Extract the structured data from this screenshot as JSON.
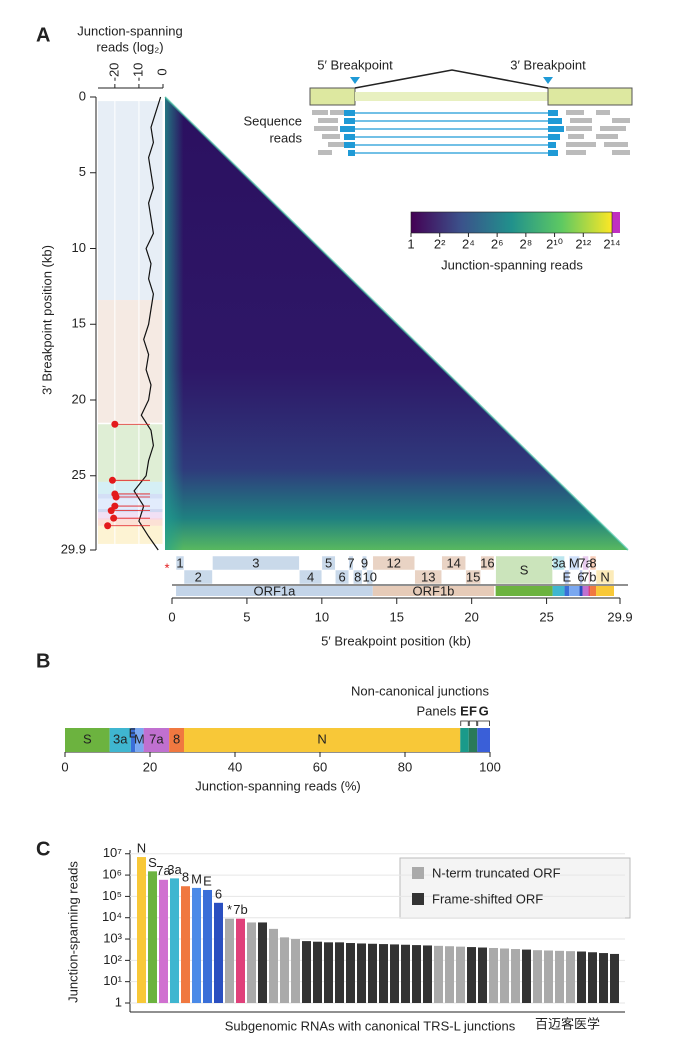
{
  "chart_data": [
    {
      "panel": "A",
      "type": "heatmap",
      "xlabel": "5′ Breakpoint position (kb)",
      "ylabel": "3′ Breakpoint position (kb)",
      "xlim": [
        0,
        29.9
      ],
      "ylim": [
        0,
        29.9
      ],
      "xticks": [
        0,
        5,
        10,
        15,
        20,
        25,
        29.9
      ],
      "yticks": [
        0,
        5,
        10,
        15,
        20,
        25,
        29.9
      ],
      "marker": "*",
      "colorbar": {
        "label": "Junction-spanning reads",
        "clim": [
          1,
          16384
        ],
        "log_base": 2,
        "ticks": [
          1,
          {
            "value": 4,
            "label": "2²"
          },
          {
            "value": 16,
            "label": "2⁴"
          },
          {
            "value": 64,
            "label": "2⁶"
          },
          {
            "value": 256,
            "label": "2⁸"
          },
          {
            "value": 1024,
            "label": "2¹⁰"
          },
          {
            "value": 4096,
            "label": "2¹²"
          },
          {
            "value": 16384,
            "label": "2¹⁴"
          }
        ]
      },
      "profile": {
        "title_lines": [
          "Junction-spanning",
          "reads (log₂)"
        ],
        "xlim": [
          -27,
          0
        ],
        "xticks": [
          -20,
          -10,
          0
        ],
        "color": "#111111",
        "positions": [
          0,
          1,
          2,
          3,
          4,
          5,
          6,
          7,
          8,
          9,
          10,
          11,
          12,
          13,
          14,
          15,
          16,
          17,
          18,
          19,
          20,
          21,
          22,
          23,
          24,
          25,
          26,
          27,
          28,
          29,
          29.9
        ],
        "values": [
          -1,
          -3,
          -5,
          -4,
          -6,
          -5,
          -4,
          -6,
          -5,
          -4,
          -7,
          -5,
          -6,
          -4,
          -5,
          -6,
          -8,
          -6,
          -7,
          -5,
          -6,
          -9,
          -5,
          -4,
          -6,
          -7,
          -12,
          -8,
          -10,
          -6,
          -2
        ],
        "canonical_color": "#e31a1c",
        "canonical_positions": [
          21.6,
          25.3,
          26.2,
          26.4,
          27.0,
          27.3,
          27.8,
          28.3
        ],
        "canonical_values": [
          -20,
          -21,
          -20,
          -19.5,
          -20,
          -21.5,
          -20.5,
          -23
        ]
      },
      "schematic": {
        "left": "5′ Breakpoint",
        "right": "3′ Breakpoint",
        "reads_lines": [
          "Sequence",
          "reads"
        ]
      },
      "genome": {
        "orfs": [
          {
            "label": "ORF1a",
            "start": 0.27,
            "end": 13.4,
            "color": "#c3d4e8"
          },
          {
            "label": "ORF1b",
            "start": 13.4,
            "end": 21.5,
            "color": "#e6cbb8"
          }
        ],
        "features": [
          {
            "label": "1",
            "start": 0.27,
            "end": 0.8,
            "color": "#c9d9ea"
          },
          {
            "label": "2",
            "start": 0.8,
            "end": 2.7,
            "color": "#c9d9ea"
          },
          {
            "label": "3",
            "start": 2.7,
            "end": 8.5,
            "color": "#c9d9ea"
          },
          {
            "label": "4",
            "start": 8.5,
            "end": 10.0,
            "color": "#c9d9ea"
          },
          {
            "label": "5",
            "start": 10.0,
            "end": 10.9,
            "color": "#c9d9ea"
          },
          {
            "label": "6",
            "start": 10.9,
            "end": 11.8,
            "color": "#c9d9ea"
          },
          {
            "label": "7",
            "start": 11.8,
            "end": 12.1,
            "color": "#c9d9ea"
          },
          {
            "label": "8",
            "start": 12.1,
            "end": 12.7,
            "color": "#c9d9ea"
          },
          {
            "label": "9",
            "start": 12.7,
            "end": 13.0,
            "color": "#c9d9ea"
          },
          {
            "label": "10",
            "start": 13.0,
            "end": 13.4,
            "color": "#c9d9ea"
          },
          {
            "label": "12",
            "start": 13.4,
            "end": 16.2,
            "color": "#e9d3c4"
          },
          {
            "label": "13",
            "start": 16.2,
            "end": 18.0,
            "color": "#e9d3c4"
          },
          {
            "label": "14",
            "start": 18.0,
            "end": 19.6,
            "color": "#e9d3c4"
          },
          {
            "label": "15",
            "start": 19.6,
            "end": 20.6,
            "color": "#e9d3c4"
          },
          {
            "label": "16",
            "start": 20.6,
            "end": 21.5,
            "color": "#e9d3c4"
          },
          {
            "label": "S",
            "start": 21.6,
            "end": 25.4,
            "color": "#6cb33f"
          },
          {
            "label": "3a",
            "start": 25.4,
            "end": 26.2,
            "color": "#3fb6d0"
          },
          {
            "label": "E",
            "start": 26.2,
            "end": 26.5,
            "color": "#3a6fd8"
          },
          {
            "label": "M",
            "start": 26.5,
            "end": 27.2,
            "color": "#7aa8f0"
          },
          {
            "label": "6",
            "start": 27.2,
            "end": 27.4,
            "color": "#2a4fc0"
          },
          {
            "label": "7a",
            "start": 27.4,
            "end": 27.8,
            "color": "#c070d0"
          },
          {
            "label": "7b",
            "start": 27.8,
            "end": 27.9,
            "color": "#e0407a"
          },
          {
            "label": "8",
            "start": 27.9,
            "end": 28.3,
            "color": "#f07840"
          },
          {
            "label": "N",
            "start": 28.3,
            "end": 29.5,
            "color": "#f8c838"
          }
        ]
      }
    },
    {
      "panel": "B",
      "type": "stacked-bar",
      "xlabel": "Junction-spanning reads (%)",
      "xlim": [
        0,
        100
      ],
      "xticks": [
        0,
        20,
        40,
        60,
        80,
        100
      ],
      "series": [
        {
          "name": "S",
          "color": "#6cb33f",
          "values": [
            10.5
          ]
        },
        {
          "name": "3a",
          "color": "#3fb6d0",
          "values": [
            5
          ]
        },
        {
          "name": "E",
          "color": "#3a6fd8",
          "values": [
            1
          ]
        },
        {
          "name": "M",
          "color": "#7aa8f0",
          "values": [
            2
          ]
        },
        {
          "name": "7a",
          "color": "#c070d0",
          "values": [
            6
          ]
        },
        {
          "name": "8",
          "color": "#f07840",
          "values": [
            3.5
          ]
        },
        {
          "name": "N",
          "color": "#f8c838",
          "values": [
            65
          ]
        }
      ],
      "noncanonical": {
        "title": "Non-canonical junctions",
        "prefix": "Panels",
        "series": [
          {
            "name": "E",
            "color": "#1a9a8a",
            "values": [
              2
            ]
          },
          {
            "name": "F",
            "color": "#2a7a5a",
            "values": [
              2
            ]
          },
          {
            "name": "G",
            "color": "#3a5fd8",
            "values": [
              3
            ]
          }
        ]
      }
    },
    {
      "panel": "C",
      "type": "bar",
      "log_scale": true,
      "grid": true,
      "ylabel": "Junction-spanning reads",
      "xlabel": "Subgenomic RNAs with canonical TRS-L junctions",
      "ylim": [
        1,
        15000000
      ],
      "yticks": [
        1,
        {
          "value": 10,
          "label": "10¹"
        },
        {
          "value": 100,
          "label": "10²"
        },
        {
          "value": 1000,
          "label": "10³"
        },
        {
          "value": 10000,
          "label": "10⁴"
        },
        {
          "value": 100000,
          "label": "10⁵"
        },
        {
          "value": 1000000,
          "label": "10⁶"
        },
        {
          "value": 10000000,
          "label": "10⁷"
        }
      ],
      "categories": [
        "N",
        "S",
        "7a",
        "3a",
        "8",
        "M",
        "E",
        "6",
        "*",
        "7b",
        null,
        null,
        null,
        null,
        null,
        null,
        null,
        null,
        null,
        null,
        null,
        null,
        null,
        null,
        null,
        null,
        null,
        null,
        null,
        null,
        null,
        null,
        null,
        null,
        null,
        null,
        null,
        null,
        null,
        null,
        null,
        null,
        null,
        null
      ],
      "values": [
        7000000,
        1500000,
        600000,
        700000,
        300000,
        250000,
        200000,
        50000,
        9000,
        9000,
        6000,
        6000,
        3000,
        1200,
        1000,
        800,
        750,
        700,
        700,
        650,
        620,
        600,
        580,
        560,
        540,
        520,
        500,
        480,
        460,
        440,
        420,
        400,
        380,
        360,
        340,
        320,
        300,
        290,
        280,
        270,
        260,
        240,
        220,
        200
      ],
      "colors": [
        "#f8c838",
        "#6cb33f",
        "#d070d0",
        "#3fb6d0",
        "#f07840",
        "#4a8ae8",
        "#3a6fd8",
        "#2a4fc0",
        "#aaaaaa",
        "#e0407a",
        "#aaaaaa",
        "#333333",
        "#aaaaaa",
        "#aaaaaa",
        "#aaaaaa",
        "#333333",
        "#333333",
        "#333333",
        "#333333",
        "#333333",
        "#333333",
        "#333333",
        "#333333",
        "#333333",
        "#333333",
        "#333333",
        "#333333",
        "#aaaaaa",
        "#aaaaaa",
        "#aaaaaa",
        "#333333",
        "#333333",
        "#aaaaaa",
        "#aaaaaa",
        "#aaaaaa",
        "#333333",
        "#aaaaaa",
        "#aaaaaa",
        "#aaaaaa",
        "#aaaaaa",
        "#333333",
        "#333333",
        "#333333",
        "#333333"
      ],
      "legend": [
        {
          "name": "N-term truncated ORF",
          "color": "#aaaaaa"
        },
        {
          "name": "Frame-shifted ORF",
          "color": "#333333"
        }
      ]
    }
  ],
  "watermark": "百迈客医学"
}
